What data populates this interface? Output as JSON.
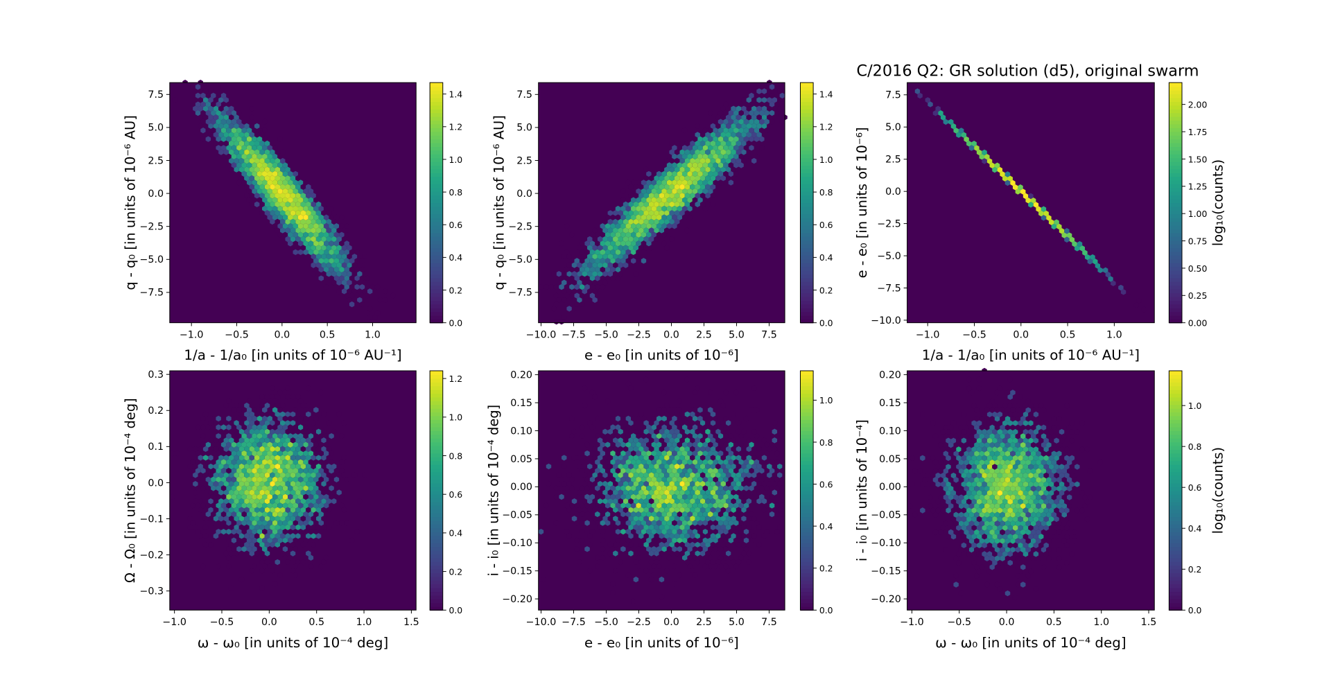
{
  "title": "C/2016 Q2: GR solution (d5), original swarm",
  "chart_data": [
    {
      "type": "hexbin",
      "colormap": "viridis",
      "xlabel": "1/a - 1/a₀ [in units of 10⁻⁶ AU⁻¹]",
      "ylabel": "q - q₀ [in units of 10⁻⁶ AU]",
      "cbar_label": "",
      "xlim": [
        -1.24,
        1.48
      ],
      "ylim": [
        -9.8,
        8.4
      ],
      "xticks": [
        -1.0,
        -0.5,
        0.0,
        0.5,
        1.0
      ],
      "xticklabels": [
        "−1.0",
        "−0.5",
        "0.0",
        "0.5",
        "1.0"
      ],
      "yticks": [
        7.5,
        5.0,
        2.5,
        0.0,
        -2.5,
        -5.0,
        -7.5
      ],
      "yticklabels": [
        "7.5",
        "5.0",
        "2.5",
        "0.0",
        "−2.5",
        "−5.0",
        "−7.5"
      ],
      "clim": [
        0,
        1.47
      ],
      "cticks": [
        0,
        0.2,
        0.4,
        0.6,
        0.8,
        1.0,
        1.2,
        1.4
      ],
      "cticklabels": [
        "0.0",
        "0.2",
        "0.4",
        "0.6",
        "0.8",
        "1.0",
        "1.2",
        "1.4"
      ],
      "distribution": {
        "center": [
          0,
          0
        ],
        "std_x": 0.36,
        "std_y": 3.0,
        "correlation": -0.93
      }
    },
    {
      "type": "hexbin",
      "colormap": "viridis",
      "xlabel": "e - e₀ [in units of 10⁻⁶]",
      "ylabel": "q - q₀ [in units of 10⁻⁶ AU]",
      "cbar_label": "",
      "xlim": [
        -10.2,
        8.7
      ],
      "ylim": [
        -9.8,
        8.4
      ],
      "xticks": [
        -10.0,
        -7.5,
        -5.0,
        -2.5,
        0.0,
        2.5,
        5.0,
        7.5
      ],
      "xticklabels": [
        "−10.0",
        "−7.5",
        "−5.0",
        "−2.5",
        "0.0",
        "2.5",
        "5.0",
        "7.5"
      ],
      "yticks": [
        7.5,
        5.0,
        2.5,
        0.0,
        -2.5,
        -5.0,
        -7.5
      ],
      "yticklabels": [
        "7.5",
        "5.0",
        "2.5",
        "0.0",
        "−2.5",
        "−5.0",
        "−7.5"
      ],
      "clim": [
        0,
        1.47
      ],
      "cticks": [
        0,
        0.2,
        0.4,
        0.6,
        0.8,
        1.0,
        1.2,
        1.4
      ],
      "cticklabels": [
        "0.0",
        "0.2",
        "0.4",
        "0.6",
        "0.8",
        "1.0",
        "1.2",
        "1.4"
      ],
      "distribution": {
        "center": [
          0,
          0
        ],
        "std_x": 3.3,
        "std_y": 3.0,
        "correlation": 0.93
      }
    },
    {
      "type": "hexbin",
      "colormap": "viridis",
      "xlabel": "1/a - 1/a₀ [in units of 10⁻⁶ AU⁻¹]",
      "ylabel": "e - e₀ [in units of 10⁻⁶]",
      "cbar_label": "log₁₀(counts)",
      "xlim": [
        -1.22,
        1.43
      ],
      "ylim": [
        -10.2,
        8.45
      ],
      "xticks": [
        -1.0,
        -0.5,
        0.0,
        0.5,
        1.0
      ],
      "xticklabels": [
        "−1.0",
        "−0.5",
        "0.0",
        "0.5",
        "1.0"
      ],
      "yticks": [
        7.5,
        5.0,
        2.5,
        0.0,
        -2.5,
        -5.0,
        -7.5,
        -10.0
      ],
      "yticklabels": [
        "7.5",
        "5.0",
        "2.5",
        "0.0",
        "−2.5",
        "−5.0",
        "−7.5",
        "−10.0"
      ],
      "clim": [
        0,
        2.2
      ],
      "cticks": [
        0,
        0.25,
        0.5,
        0.75,
        1.0,
        1.25,
        1.5,
        1.75,
        2.0
      ],
      "cticklabels": [
        "0.00",
        "0.25",
        "0.50",
        "0.75",
        "1.00",
        "1.25",
        "1.50",
        "1.75",
        "2.00"
      ],
      "distribution": {
        "center": [
          0,
          0
        ],
        "std_x": 0.36,
        "std_y": 2.5,
        "correlation": -1.0
      }
    },
    {
      "type": "hexbin",
      "colormap": "viridis",
      "xlabel": "ω - ω₀ [in units of 10⁻⁴ deg]",
      "ylabel": "Ω - Ω₀ [in units of 10⁻⁴ deg]",
      "cbar_label": "",
      "xlim": [
        -1.05,
        1.55
      ],
      "ylim": [
        -0.353,
        0.31
      ],
      "xticks": [
        -1.0,
        -0.5,
        0.0,
        0.5,
        1.0,
        1.5
      ],
      "xticklabels": [
        "−1.0",
        "−0.5",
        "0.0",
        "0.5",
        "1.0",
        "1.5"
      ],
      "yticks": [
        0.3,
        0.2,
        0.1,
        0.0,
        -0.1,
        -0.2,
        -0.3
      ],
      "yticklabels": [
        "0.3",
        "0.2",
        "0.1",
        "0.0",
        "−0.1",
        "−0.2",
        "−0.3"
      ],
      "clim": [
        0,
        1.24
      ],
      "cticks": [
        0,
        0.2,
        0.4,
        0.6,
        0.8,
        1.0,
        1.2
      ],
      "cticklabels": [
        "0.0",
        "0.2",
        "0.4",
        "0.6",
        "0.8",
        "1.0",
        "1.2"
      ],
      "distribution": {
        "center": [
          0,
          0
        ],
        "std_x": 0.3,
        "std_y": 0.09,
        "correlation": 0.0
      }
    },
    {
      "type": "hexbin",
      "colormap": "viridis",
      "xlabel": "e - e₀ [in units of 10⁻⁶]",
      "ylabel": "i - i₀ [in units of 10⁻⁴ deg]",
      "cbar_label": "",
      "xlim": [
        -10.2,
        8.7
      ],
      "ylim": [
        -0.22,
        0.207
      ],
      "xticks": [
        -10.0,
        -7.5,
        -5.0,
        -2.5,
        0.0,
        2.5,
        5.0,
        7.5
      ],
      "xticklabels": [
        "−10.0",
        "−7.5",
        "−5.0",
        "−2.5",
        "0.0",
        "2.5",
        "5.0",
        "7.5"
      ],
      "yticks": [
        0.2,
        0.15,
        0.1,
        0.05,
        0.0,
        -0.05,
        -0.1,
        -0.15,
        -0.2
      ],
      "yticklabels": [
        "0.20",
        "0.15",
        "0.10",
        "0.05",
        "0.00",
        "−0.05",
        "−0.10",
        "−0.15",
        "−0.20"
      ],
      "clim": [
        0,
        1.14
      ],
      "cticks": [
        0,
        0.2,
        0.4,
        0.6,
        0.8,
        1.0
      ],
      "cticklabels": [
        "0.0",
        "0.2",
        "0.4",
        "0.6",
        "0.8",
        "1.0"
      ],
      "distribution": {
        "center": [
          0,
          0
        ],
        "std_x": 3.3,
        "std_y": 0.06,
        "correlation": 0.0
      }
    },
    {
      "type": "hexbin",
      "colormap": "viridis",
      "xlabel": "ω - ω₀ [in units of 10⁻⁴ deg]",
      "ylabel": "i - i₀ [in units of 10⁻⁴]",
      "cbar_label": "log₁₀(counts)",
      "xlim": [
        -1.05,
        1.56
      ],
      "ylim": [
        -0.22,
        0.207
      ],
      "xticks": [
        -1.0,
        -0.5,
        0.0,
        0.5,
        1.0,
        1.5
      ],
      "xticklabels": [
        "−1.0",
        "−0.5",
        "0.0",
        "0.5",
        "1.0",
        "1.5"
      ],
      "yticks": [
        0.2,
        0.15,
        0.1,
        0.05,
        0.0,
        -0.05,
        -0.1,
        -0.15,
        -0.2
      ],
      "yticklabels": [
        "0.20",
        "0.15",
        "0.10",
        "0.05",
        "0.00",
        "−0.05",
        "−0.10",
        "−0.15",
        "−0.20"
      ],
      "clim": [
        0,
        1.17
      ],
      "cticks": [
        0,
        0.2,
        0.4,
        0.6,
        0.8,
        1.0
      ],
      "cticklabels": [
        "0.0",
        "0.2",
        "0.4",
        "0.6",
        "0.8",
        "1.0"
      ],
      "distribution": {
        "center": [
          0,
          0
        ],
        "std_x": 0.3,
        "std_y": 0.06,
        "correlation": 0.0
      }
    }
  ]
}
